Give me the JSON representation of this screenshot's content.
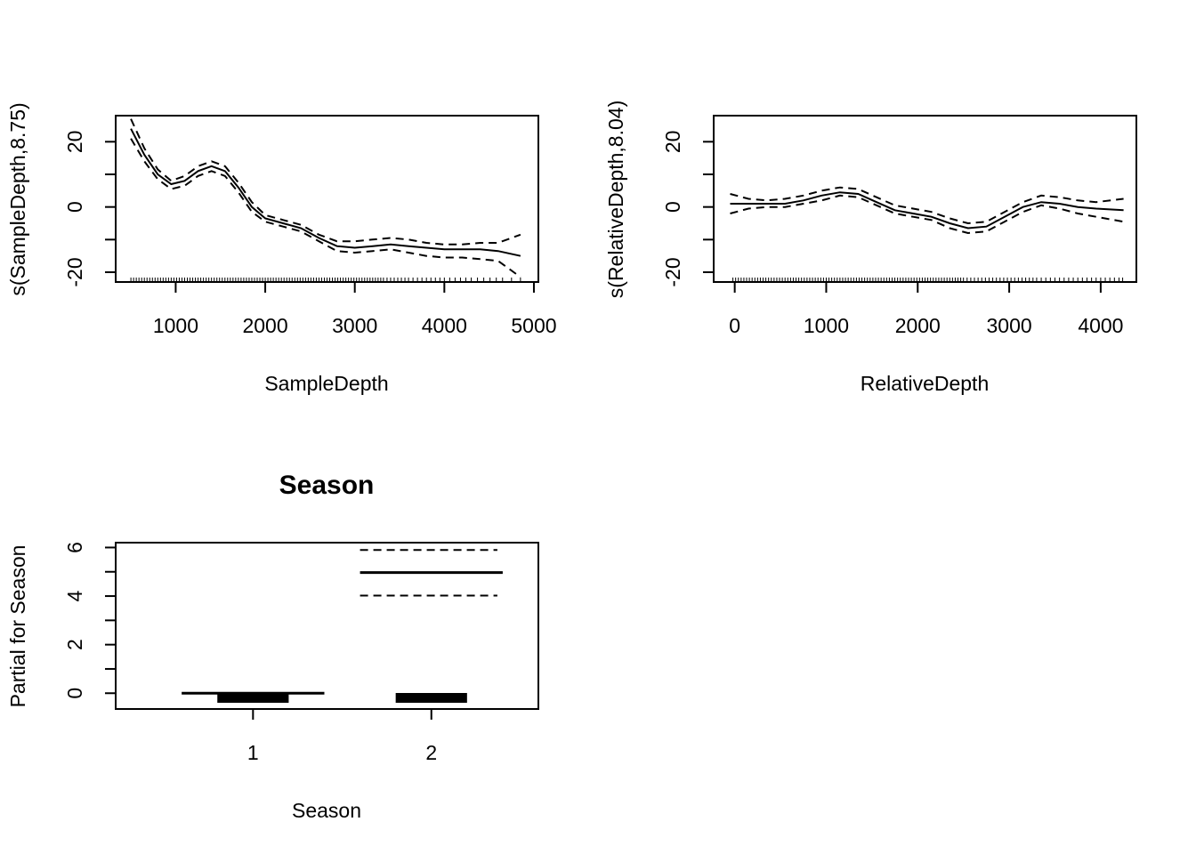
{
  "chart_data": [
    {
      "type": "line",
      "panel": "sample-depth",
      "title": "",
      "xlabel": "SampleDepth",
      "ylabel": "s(SampleDepth,8.75)",
      "xlim": [
        330,
        5050
      ],
      "ylim": [
        -23,
        28
      ],
      "x_ticks": [
        1000,
        2000,
        3000,
        4000,
        5000
      ],
      "x_tick_labels": [
        "1000",
        "2000",
        "3000",
        "4000",
        "5000"
      ],
      "y_ticks": [
        -20,
        -10,
        0,
        10,
        20
      ],
      "y_tick_labels": [
        "-20",
        "",
        "0",
        "",
        "20"
      ],
      "series": [
        {
          "role": "fit",
          "x": [
            500,
            650,
            800,
            950,
            1100,
            1250,
            1400,
            1550,
            1700,
            1850,
            2000,
            2200,
            2400,
            2600,
            2800,
            3000,
            3200,
            3400,
            3600,
            3800,
            4000,
            4200,
            4400,
            4600,
            4850
          ],
          "y": [
            24,
            16,
            10,
            7,
            8,
            11,
            12.5,
            11,
            6,
            0,
            -3.5,
            -5,
            -6.5,
            -9.5,
            -12,
            -12.5,
            -12,
            -11.5,
            -12,
            -12.5,
            -13,
            -13,
            -13,
            -13.5,
            -15
          ]
        },
        {
          "role": "upper",
          "x": [
            500,
            650,
            800,
            950,
            1100,
            1250,
            1400,
            1550,
            1700,
            1850,
            2000,
            2200,
            2400,
            2600,
            2800,
            3000,
            3200,
            3400,
            3600,
            3800,
            4000,
            4200,
            4400,
            4600,
            4850
          ],
          "y": [
            27,
            18,
            11.5,
            8,
            9.5,
            12.5,
            14,
            12.5,
            7.5,
            1.5,
            -2.5,
            -4,
            -5.5,
            -8.5,
            -10.5,
            -10.5,
            -10,
            -9.5,
            -10,
            -11,
            -11.5,
            -11.5,
            -11,
            -11,
            -8.5
          ]
        },
        {
          "role": "lower",
          "x": [
            500,
            650,
            800,
            950,
            1100,
            1250,
            1400,
            1550,
            1700,
            1850,
            2000,
            2200,
            2400,
            2600,
            2800,
            3000,
            3200,
            3400,
            3600,
            3800,
            4000,
            4200,
            4400,
            4600,
            4850
          ],
          "y": [
            21,
            14,
            8.5,
            5.5,
            6.5,
            9.5,
            11,
            9.5,
            4.5,
            -1.5,
            -4.5,
            -6,
            -7.5,
            -10.5,
            -13.5,
            -14,
            -13.5,
            -13,
            -14,
            -15,
            -15.5,
            -15.5,
            -16,
            -16.5,
            -21.5
          ]
        }
      ],
      "rug": [
        500,
        530,
        560,
        590,
        620,
        650,
        680,
        710,
        740,
        770,
        800,
        830,
        860,
        890,
        920,
        950,
        980,
        1010,
        1040,
        1070,
        1100,
        1130,
        1160,
        1190,
        1220,
        1250,
        1280,
        1310,
        1340,
        1370,
        1400,
        1430,
        1460,
        1490,
        1520,
        1550,
        1580,
        1610,
        1640,
        1670,
        1700,
        1730,
        1760,
        1790,
        1820,
        1850,
        1880,
        1910,
        1940,
        1970,
        2000,
        2030,
        2060,
        2090,
        2120,
        2150,
        2180,
        2210,
        2240,
        2270,
        2300,
        2330,
        2360,
        2390,
        2420,
        2450,
        2480,
        2510,
        2540,
        2570,
        2600,
        2630,
        2660,
        2690,
        2720,
        2750,
        2780,
        2810,
        2840,
        2870,
        2900,
        2930,
        2960,
        2990,
        3020,
        3050,
        3080,
        3110,
        3140,
        3170,
        3200,
        3230,
        3260,
        3290,
        3320,
        3360,
        3400,
        3440,
        3480,
        3520,
        3560,
        3600,
        3650,
        3700,
        3750,
        3800,
        3850,
        3900,
        3950,
        4000,
        4060,
        4120,
        4180,
        4240,
        4300,
        4370,
        4440,
        4510,
        4580,
        4650,
        4750,
        4850
      ]
    },
    {
      "type": "line",
      "panel": "relative-depth",
      "title": "",
      "xlabel": "RelativeDepth",
      "ylabel": "s(RelativeDepth,8.04)",
      "xlim": [
        -230,
        4390
      ],
      "ylim": [
        -23,
        28
      ],
      "x_ticks": [
        0,
        1000,
        2000,
        3000,
        4000
      ],
      "x_tick_labels": [
        "0",
        "1000",
        "2000",
        "3000",
        "4000"
      ],
      "y_ticks": [
        -20,
        -10,
        0,
        10,
        20
      ],
      "y_tick_labels": [
        "-20",
        "",
        "0",
        "",
        "20"
      ],
      "series": [
        {
          "role": "fit",
          "x": [
            -50,
            150,
            350,
            550,
            750,
            950,
            1150,
            1350,
            1550,
            1750,
            1950,
            2150,
            2350,
            2550,
            2750,
            2950,
            3150,
            3350,
            3550,
            3750,
            3950,
            4250
          ],
          "y": [
            1,
            1,
            1,
            1,
            2,
            3.5,
            4.5,
            4,
            1.5,
            -1,
            -2,
            -3,
            -5,
            -6.5,
            -6,
            -3,
            0,
            1.5,
            1,
            0,
            -0.5,
            -1
          ]
        },
        {
          "role": "upper",
          "x": [
            -50,
            150,
            350,
            550,
            750,
            950,
            1150,
            1350,
            1550,
            1750,
            1950,
            2150,
            2350,
            2550,
            2750,
            2950,
            3150,
            3350,
            3550,
            3750,
            3950,
            4250
          ],
          "y": [
            4,
            2.5,
            2,
            2.5,
            3.5,
            5,
            6,
            5.5,
            3,
            0.5,
            -0.5,
            -1.5,
            -3.5,
            -5,
            -4.5,
            -1.5,
            1.5,
            3.5,
            3,
            2,
            1.5,
            2.5
          ]
        },
        {
          "role": "lower",
          "x": [
            -50,
            150,
            350,
            550,
            750,
            950,
            1150,
            1350,
            1550,
            1750,
            1950,
            2150,
            2350,
            2550,
            2750,
            2950,
            3150,
            3350,
            3550,
            3750,
            3950,
            4250
          ],
          "y": [
            -2,
            -0.5,
            0,
            0,
            1,
            2,
            3.5,
            3,
            0.5,
            -2,
            -3,
            -4,
            -6.5,
            -8,
            -7.5,
            -4.5,
            -1.5,
            0.5,
            -0.5,
            -2,
            -3,
            -4.5
          ]
        }
      ],
      "rug": [
        -20,
        10,
        40,
        70,
        100,
        130,
        160,
        190,
        220,
        250,
        280,
        310,
        340,
        370,
        400,
        430,
        460,
        490,
        520,
        550,
        580,
        610,
        640,
        670,
        700,
        730,
        760,
        790,
        820,
        850,
        880,
        910,
        940,
        970,
        1000,
        1030,
        1060,
        1090,
        1120,
        1150,
        1180,
        1210,
        1240,
        1270,
        1300,
        1330,
        1360,
        1390,
        1420,
        1450,
        1480,
        1510,
        1540,
        1570,
        1600,
        1630,
        1660,
        1690,
        1720,
        1750,
        1780,
        1810,
        1840,
        1870,
        1900,
        1930,
        1960,
        1990,
        2020,
        2050,
        2080,
        2110,
        2140,
        2170,
        2200,
        2230,
        2260,
        2290,
        2320,
        2350,
        2380,
        2410,
        2440,
        2470,
        2500,
        2540,
        2580,
        2620,
        2660,
        2700,
        2740,
        2780,
        2820,
        2860,
        2900,
        2940,
        2980,
        3020,
        3060,
        3100,
        3140,
        3180,
        3220,
        3260,
        3300,
        3350,
        3400,
        3450,
        3500,
        3550,
        3600,
        3650,
        3700,
        3750,
        3800,
        3850,
        3900,
        3950,
        4000,
        4050,
        4100,
        4150,
        4200,
        4240
      ]
    },
    {
      "type": "line",
      "panel": "season",
      "title": "Season",
      "xlabel": "Season",
      "ylabel": "Partial for Season",
      "xlim": [
        0.23,
        2.6
      ],
      "ylim": [
        -0.65,
        6.2
      ],
      "categories": [
        "1",
        "2"
      ],
      "x_ticks": [
        1,
        2
      ],
      "x_tick_labels": [
        "1",
        "2"
      ],
      "y_ticks": [
        0,
        1,
        2,
        3,
        4,
        5,
        6
      ],
      "y_tick_labels": [
        "0",
        "",
        "2",
        "",
        "4",
        "",
        "6"
      ],
      "levels": [
        {
          "category": "1",
          "fit": 0,
          "upper": 0,
          "lower": 0
        },
        {
          "category": "2",
          "fit": 4.97,
          "upper": 5.9,
          "lower": 4.02
        }
      ]
    }
  ]
}
